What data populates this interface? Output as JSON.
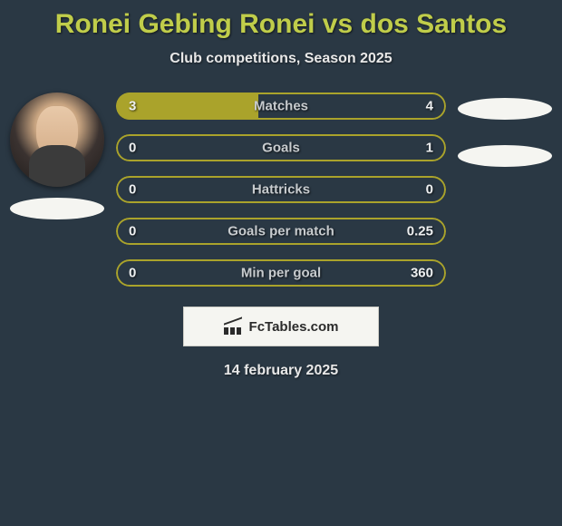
{
  "background_color": "#2a3844",
  "title": {
    "text": "Ronei Gebing Ronei vs dos Santos",
    "color": "#c0cd4a",
    "fontsize": 30
  },
  "subtitle": {
    "text": "Club competitions, Season 2025",
    "fontsize": 16
  },
  "bar_style": {
    "fill_color": "#aaa32b",
    "border_color": "#aaa32b",
    "empty_color": "transparent",
    "height": 30,
    "radius": 16
  },
  "stats": [
    {
      "label": "Matches",
      "left_val": "3",
      "right_val": "4",
      "left_pct": 43,
      "right_pct": 0
    },
    {
      "label": "Goals",
      "left_val": "0",
      "right_val": "1",
      "left_pct": 0,
      "right_pct": 0
    },
    {
      "label": "Hattricks",
      "left_val": "0",
      "right_val": "0",
      "left_pct": 0,
      "right_pct": 0
    },
    {
      "label": "Goals per match",
      "left_val": "0",
      "right_val": "0.25",
      "left_pct": 0,
      "right_pct": 0
    },
    {
      "label": "Min per goal",
      "left_val": "0",
      "right_val": "360",
      "left_pct": 0,
      "right_pct": 0
    }
  ],
  "footer": {
    "brand": "FcTables.com",
    "box_bg": "#f5f5f1"
  },
  "date": {
    "text": "14 february 2025",
    "fontsize": 16
  },
  "players": {
    "left_has_photo": true,
    "right_has_photo": false
  }
}
